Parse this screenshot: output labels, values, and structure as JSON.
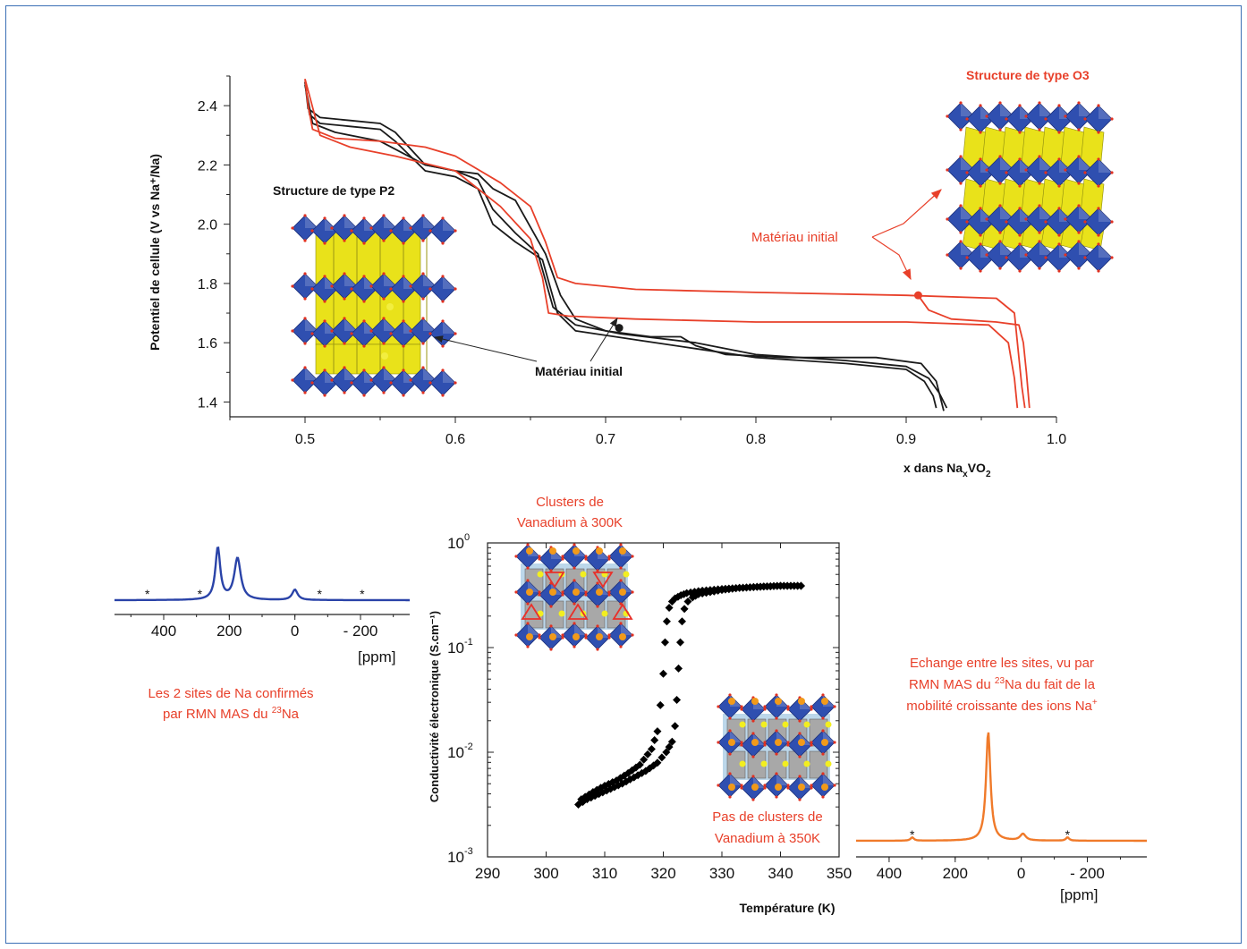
{
  "colors": {
    "black_curve": "#1a1a1a",
    "red_curve": "#e8402a",
    "nmr_blue": "#2a43a8",
    "nmr_orange": "#f07a2a",
    "annotation_red": "#e8402a",
    "octa_blue": "#2f4fb0",
    "prism_yellow": "#e9e21a",
    "octa_grey": "#a8a8a8"
  },
  "chart_data": [
    {
      "id": "galvanostatic",
      "type": "line",
      "xlabel_main": "x dans Na",
      "xlabel_sub": "x",
      "xlabel_end": "VO",
      "xlabel_sub2": "2",
      "ylabel": "Potentiel de cellule (V vs Na⁺/Na)",
      "xlim": [
        0.45,
        1.0
      ],
      "ylim": [
        1.35,
        2.5
      ],
      "xticks": [
        "0.5",
        "0.6",
        "0.7",
        "0.8",
        "0.9",
        "1.0"
      ],
      "xtick_values": [
        0.5,
        0.6,
        0.7,
        0.8,
        0.9,
        1.0
      ],
      "yticks": [
        "1.4",
        "1.6",
        "1.8",
        "2.0",
        "2.2",
        "2.4"
      ],
      "ytick_values": [
        1.4,
        1.6,
        1.8,
        2.0,
        2.2,
        2.4
      ],
      "series": [
        {
          "color": "black",
          "x": [
            0.5,
            0.502,
            0.51,
            0.53,
            0.55,
            0.56,
            0.58,
            0.6,
            0.615,
            0.625,
            0.64,
            0.655,
            0.665,
            0.68,
            0.71,
            0.76,
            0.8,
            0.86,
            0.9,
            0.915,
            0.922,
            0.927
          ],
          "y": [
            2.48,
            2.39,
            2.36,
            2.35,
            2.34,
            2.31,
            2.2,
            2.18,
            2.15,
            2.05,
            1.97,
            1.9,
            1.72,
            1.66,
            1.63,
            1.6,
            1.56,
            1.54,
            1.52,
            1.48,
            1.43,
            1.38
          ]
        },
        {
          "color": "black",
          "x": [
            0.5,
            0.503,
            0.51,
            0.53,
            0.55,
            0.56,
            0.58,
            0.6,
            0.615,
            0.625,
            0.64,
            0.658,
            0.668,
            0.68,
            0.72,
            0.76,
            0.8,
            0.86,
            0.9,
            0.912,
            0.918,
            0.92
          ],
          "y": [
            2.48,
            2.37,
            2.34,
            2.33,
            2.32,
            2.28,
            2.18,
            2.16,
            2.12,
            2.0,
            1.94,
            1.88,
            1.7,
            1.64,
            1.61,
            1.58,
            1.55,
            1.53,
            1.51,
            1.47,
            1.42,
            1.38
          ]
        },
        {
          "color": "black",
          "x": [
            0.5,
            0.505,
            0.52,
            0.55,
            0.58,
            0.6,
            0.615,
            0.625,
            0.64,
            0.66,
            0.67,
            0.68,
            0.7,
            0.73,
            0.75,
            0.76,
            0.78,
            0.82,
            0.88,
            0.91,
            0.92,
            0.925
          ],
          "y": [
            2.47,
            2.34,
            2.31,
            2.28,
            2.2,
            2.18,
            2.17,
            2.12,
            2.08,
            1.9,
            1.76,
            1.68,
            1.64,
            1.62,
            1.62,
            1.59,
            1.56,
            1.55,
            1.55,
            1.53,
            1.47,
            1.37
          ]
        },
        {
          "color": "red",
          "x": [
            0.5,
            0.502,
            0.505,
            0.52,
            0.55,
            0.58,
            0.6,
            0.63,
            0.65,
            0.66,
            0.668,
            0.68,
            0.72,
            0.8,
            0.9,
            0.96,
            0.972,
            0.975,
            0.977,
            0.979
          ],
          "y": [
            2.49,
            2.4,
            2.32,
            2.29,
            2.28,
            2.26,
            2.23,
            2.14,
            2.06,
            1.94,
            1.82,
            1.8,
            1.78,
            1.77,
            1.76,
            1.75,
            1.7,
            1.55,
            1.45,
            1.38
          ]
        },
        {
          "color": "red",
          "x": [
            0.5,
            0.51,
            0.53,
            0.56,
            0.6,
            0.63,
            0.65,
            0.658,
            0.662,
            0.675,
            0.72,
            0.8,
            0.9,
            0.955,
            0.968,
            0.972,
            0.974
          ],
          "y": [
            2.49,
            2.3,
            2.26,
            2.23,
            2.18,
            2.06,
            1.95,
            1.82,
            1.7,
            1.69,
            1.68,
            1.67,
            1.67,
            1.66,
            1.6,
            1.48,
            1.38
          ]
        },
        {
          "color": "red",
          "x": [
            0.908,
            0.915,
            0.93,
            0.96,
            0.975,
            0.978,
            0.98,
            0.982
          ],
          "y": [
            1.76,
            1.71,
            1.68,
            1.67,
            1.66,
            1.6,
            1.5,
            1.38
          ]
        }
      ],
      "markers": [
        {
          "x": 0.709,
          "y": 1.65,
          "color": "black"
        },
        {
          "x": 0.908,
          "y": 1.76,
          "color": "red"
        }
      ],
      "annotations": {
        "p2_title": "Structure de type P2",
        "o3_title": "Structure de type O3",
        "initial_black": "Matériau initial",
        "initial_red": "Matériau initial"
      }
    },
    {
      "id": "conductivity",
      "type": "scatter",
      "xlabel": "Température (K)",
      "ylabel": "Conductivité électronique (S.cm⁻¹)",
      "xlim": [
        290,
        350
      ],
      "ylim_log10": [
        -3,
        0
      ],
      "xticks": [
        "290",
        "300",
        "310",
        "320",
        "330",
        "340",
        "350"
      ],
      "xtick_values": [
        290,
        300,
        310,
        320,
        330,
        340,
        350
      ],
      "yticks": [
        {
          "base": "10",
          "exp": "0"
        },
        {
          "base": "10",
          "exp": "-1"
        },
        {
          "base": "10",
          "exp": "-2"
        },
        {
          "base": "10",
          "exp": "-3"
        }
      ],
      "ytick_values": [
        0,
        -1,
        -2,
        -3
      ],
      "series": [
        {
          "name_hidden": "heating",
          "x": [
            306,
            308,
            310,
            312,
            314,
            316,
            318,
            319,
            319.5,
            320,
            320.3,
            320.6,
            321,
            321.5,
            322,
            323,
            324,
            326,
            328,
            330,
            333,
            336,
            340,
            343.5
          ],
          "log10y": [
            -2.45,
            -2.38,
            -2.32,
            -2.27,
            -2.2,
            -2.12,
            -1.97,
            -1.8,
            -1.55,
            -1.25,
            -0.95,
            -0.75,
            -0.62,
            -0.56,
            -0.53,
            -0.5,
            -0.48,
            -0.46,
            -0.45,
            -0.44,
            -0.43,
            -0.42,
            -0.41,
            -0.41
          ]
        },
        {
          "name_hidden": "cooling",
          "x": [
            305.5,
            307,
            309,
            311,
            313,
            315,
            317,
            319,
            320.5,
            321.5,
            322,
            322.3,
            322.6,
            322.9,
            323.2,
            323.6,
            324.2,
            325,
            326,
            328,
            330,
            333,
            336,
            340,
            343.5
          ],
          "log10y": [
            -2.5,
            -2.45,
            -2.4,
            -2.35,
            -2.3,
            -2.24,
            -2.18,
            -2.1,
            -2.0,
            -1.9,
            -1.75,
            -1.5,
            -1.2,
            -0.95,
            -0.75,
            -0.63,
            -0.56,
            -0.52,
            -0.49,
            -0.47,
            -0.45,
            -0.43,
            -0.42,
            -0.41,
            -0.41
          ]
        }
      ],
      "annotations": {
        "clusters_300": [
          "Clusters de",
          "Vanadium à 300K"
        ],
        "clusters_350": [
          "Pas de clusters de",
          "Vanadium à 350K"
        ]
      }
    },
    {
      "id": "nmr_low",
      "type": "line",
      "xlabel": "[ppm]",
      "xticks": [
        "400",
        "200",
        "0",
        "- 200"
      ],
      "xtick_values": [
        400,
        200,
        0,
        -200
      ],
      "xlim": [
        550,
        -350
      ],
      "peaks": [
        {
          "pos": 235,
          "h": 1.0,
          "w": 9
        },
        {
          "pos": 175,
          "h": 0.8,
          "w": 12
        },
        {
          "pos": 0,
          "h": 0.2,
          "w": 10
        }
      ],
      "stars": [
        {
          "pos": 450,
          "label": "*"
        },
        {
          "pos": 290,
          "label": "*"
        },
        {
          "pos": -75,
          "label": "*"
        },
        {
          "pos": -205,
          "label": "*"
        }
      ],
      "caption_line1": "Les 2 sites de Na confirmés",
      "caption_line2_pre": "par RMN MAS du ",
      "caption_sup": "23",
      "caption_line2_post": "Na"
    },
    {
      "id": "nmr_high",
      "type": "line",
      "xlabel": "[ppm]",
      "xticks": [
        "400",
        "200",
        "0",
        "- 200"
      ],
      "xtick_values": [
        400,
        200,
        0,
        -200
      ],
      "xlim": [
        500,
        -380
      ],
      "peaks": [
        {
          "pos": 100,
          "h": 1.0,
          "w": 8
        },
        {
          "pos": -5,
          "h": 0.06,
          "w": 10
        },
        {
          "pos": 330,
          "h": 0.03,
          "w": 6
        },
        {
          "pos": -140,
          "h": 0.03,
          "w": 6
        }
      ],
      "stars": [
        {
          "pos": 330,
          "label": "*"
        },
        {
          "pos": -140,
          "label": "*"
        }
      ],
      "caption_line1": "Echange entre les sites, vu par",
      "caption_line2_pre": "RMN MAS du ",
      "caption_sup": "23",
      "caption_line2_post": "Na du fait de la",
      "caption_line3_pre": "mobilité croissante des ions Na",
      "caption_sup3": "+"
    }
  ]
}
